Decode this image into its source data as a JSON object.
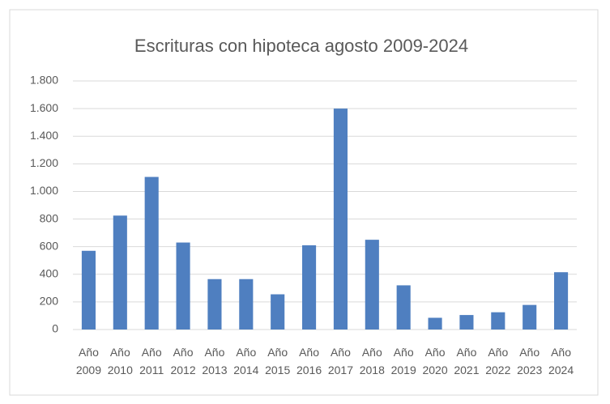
{
  "chart_data": {
    "type": "bar",
    "title": "Escrituras con hipoteca agosto 2009-2024",
    "categories": [
      "Año 2009",
      "Año 2010",
      "Año 2011",
      "Año 2012",
      "Año 2013",
      "Año 2014",
      "Año 2015",
      "Año 2016",
      "Año 2017",
      "Año 2018",
      "Año 2019",
      "Año 2020",
      "Año 2021",
      "Año 2022",
      "Año 2023",
      "Año 2024"
    ],
    "values": [
      570,
      825,
      1105,
      630,
      365,
      365,
      255,
      610,
      1600,
      650,
      320,
      85,
      105,
      125,
      178,
      415
    ],
    "color": "#4f7fc0",
    "ylim": [
      0,
      1800
    ],
    "yticks": [
      0,
      200,
      400,
      600,
      800,
      {
        "value": 1000,
        "label": "1.000"
      },
      {
        "value": 1200,
        "label": "1.200"
      },
      {
        "value": 1400,
        "label": "1.400"
      },
      {
        "value": 1600,
        "label": "1.600"
      },
      {
        "value": 1800,
        "label": "1.800"
      }
    ],
    "grid": true
  }
}
